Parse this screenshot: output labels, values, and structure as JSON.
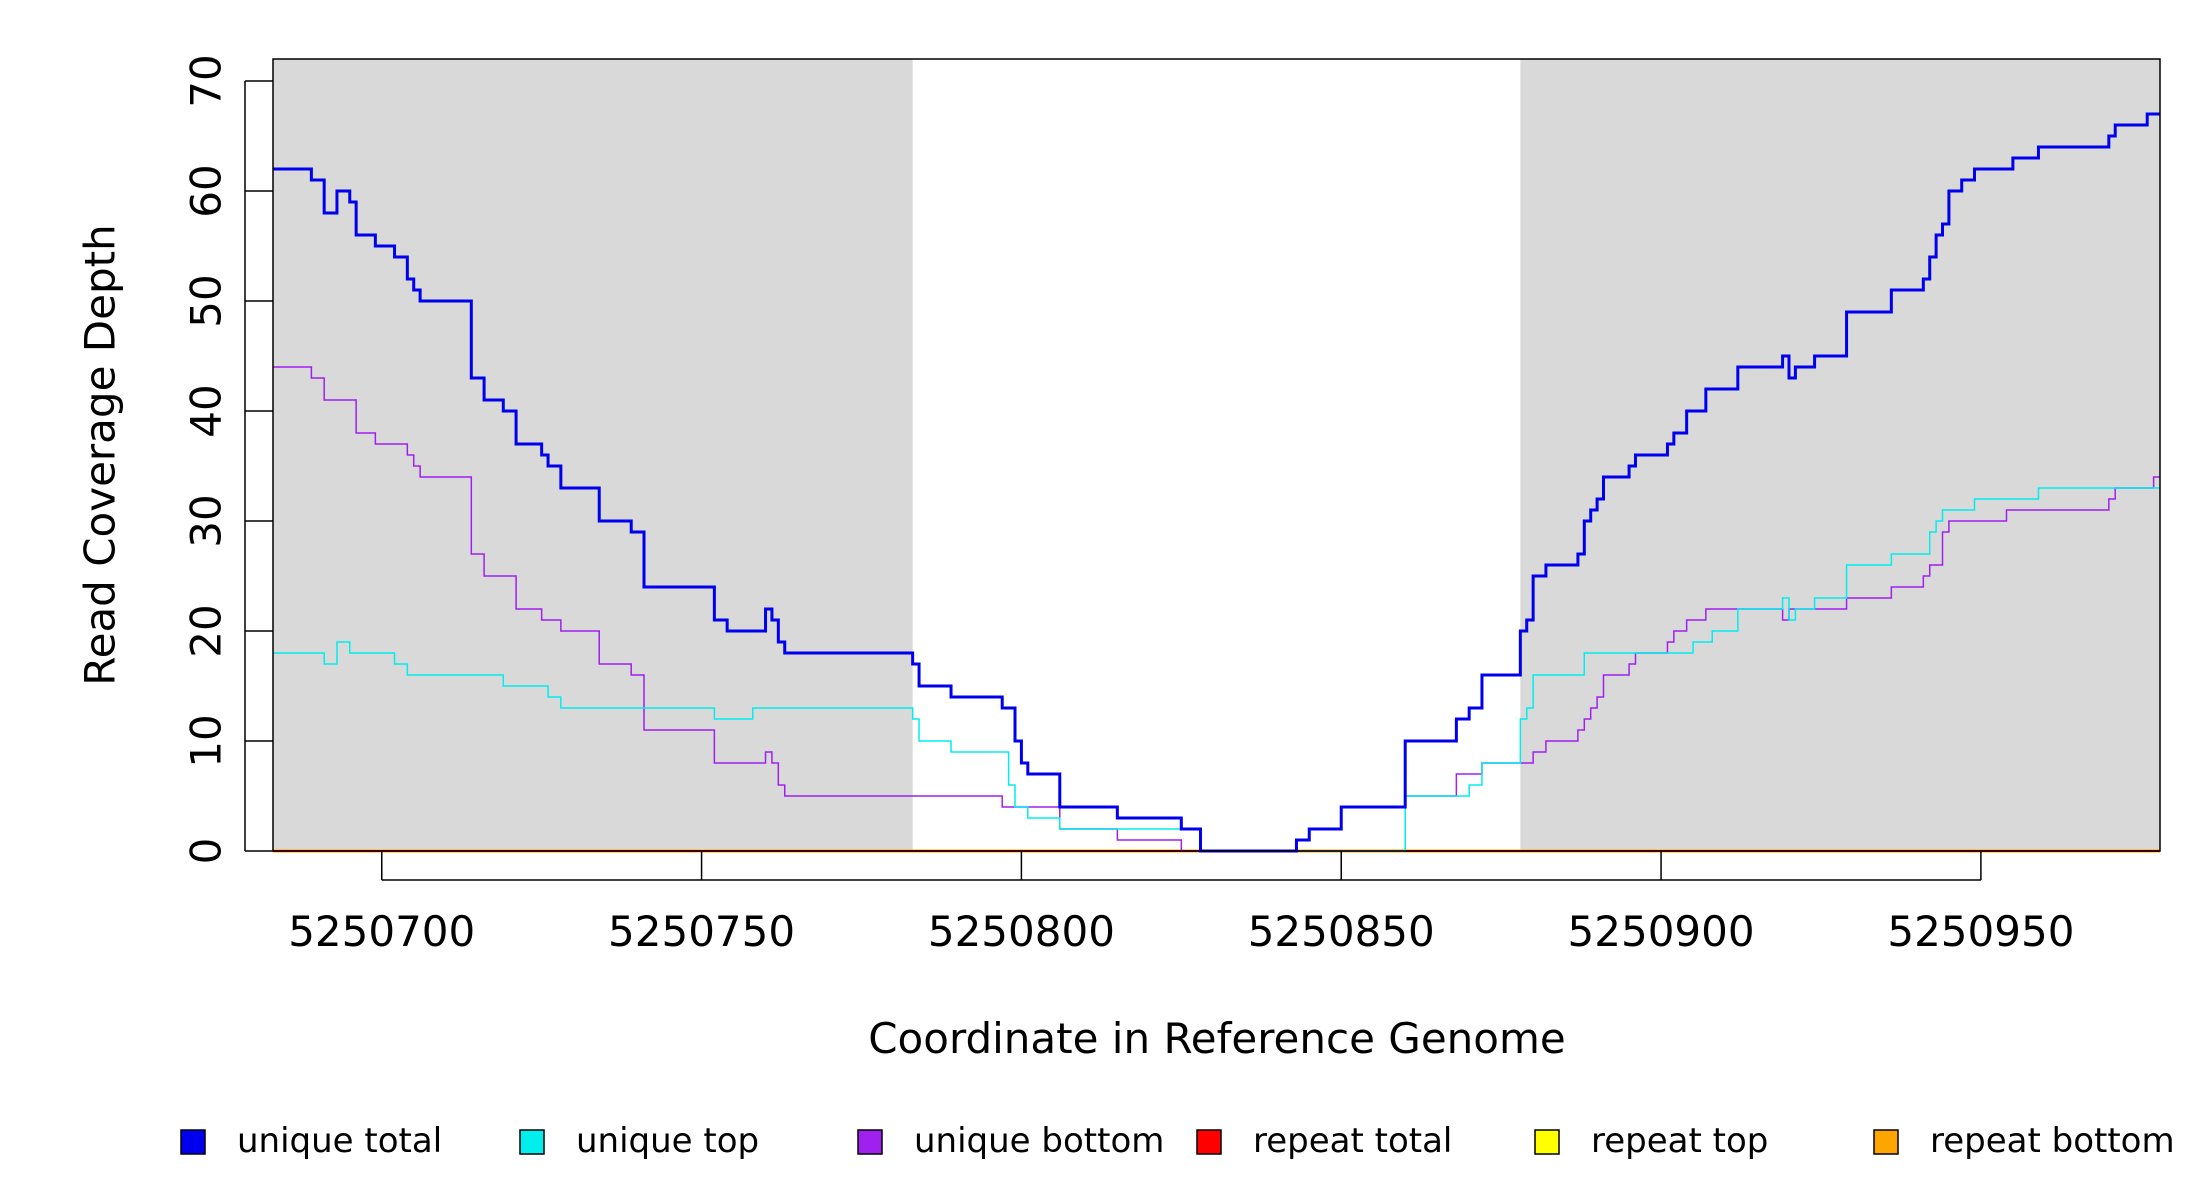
{
  "chart_data": {
    "type": "line",
    "title": "",
    "xlabel": "Coordinate in Reference Genome",
    "ylabel": "Read Coverage Depth",
    "xlim": [
      5250683,
      5250978
    ],
    "ylim": [
      0,
      72
    ],
    "x_ticks": [
      5250700,
      5250750,
      5250800,
      5250850,
      5250900,
      5250950
    ],
    "x_tick_labels": [
      "5250700",
      "5250750",
      "5250800",
      "5250850",
      "5250900",
      "5250950"
    ],
    "y_ticks": [
      0,
      10,
      20,
      30,
      40,
      50,
      60,
      70
    ],
    "y_tick_labels": [
      "0",
      "10",
      "20",
      "30",
      "40",
      "50",
      "60",
      "70"
    ],
    "grid": false,
    "legend_position": "bottom",
    "shaded_regions": [
      {
        "x_start": 5250683,
        "x_end": 5250783,
        "color": "#d9d9d9"
      },
      {
        "x_start": 5250878,
        "x_end": 5250978,
        "color": "#d9d9d9"
      }
    ],
    "series": [
      {
        "name": "unique total",
        "color": "#0000ee",
        "line": "step",
        "width": 3,
        "points": [
          [
            5250683,
            62
          ],
          [
            5250689,
            61
          ],
          [
            5250691,
            58
          ],
          [
            5250693,
            60
          ],
          [
            5250695,
            59
          ],
          [
            5250696,
            56
          ],
          [
            5250699,
            55
          ],
          [
            5250702,
            54
          ],
          [
            5250704,
            52
          ],
          [
            5250705,
            51
          ],
          [
            5250706,
            50
          ],
          [
            5250714,
            43
          ],
          [
            5250716,
            41
          ],
          [
            5250719,
            40
          ],
          [
            5250721,
            37
          ],
          [
            5250725,
            36
          ],
          [
            5250726,
            35
          ],
          [
            5250728,
            33
          ],
          [
            5250734,
            30
          ],
          [
            5250739,
            29
          ],
          [
            5250741,
            24
          ],
          [
            5250752,
            21
          ],
          [
            5250754,
            20
          ],
          [
            5250760,
            22
          ],
          [
            5250761,
            21
          ],
          [
            5250762,
            19
          ],
          [
            5250763,
            18
          ],
          [
            5250783,
            17
          ],
          [
            5250784,
            15
          ],
          [
            5250789,
            14
          ],
          [
            5250797,
            13
          ],
          [
            5250799,
            10
          ],
          [
            5250800,
            8
          ],
          [
            5250801,
            7
          ],
          [
            5250806,
            4
          ],
          [
            5250815,
            3
          ],
          [
            5250825,
            2
          ],
          [
            5250828,
            0
          ],
          [
            5250843,
            1
          ],
          [
            5250845,
            2
          ],
          [
            5250850,
            4
          ],
          [
            5250860,
            10
          ],
          [
            5250868,
            12
          ],
          [
            5250870,
            13
          ],
          [
            5250872,
            16
          ],
          [
            5250878,
            20
          ],
          [
            5250879,
            21
          ],
          [
            5250880,
            25
          ],
          [
            5250882,
            26
          ],
          [
            5250887,
            27
          ],
          [
            5250888,
            30
          ],
          [
            5250889,
            31
          ],
          [
            5250890,
            32
          ],
          [
            5250891,
            34
          ],
          [
            5250895,
            35
          ],
          [
            5250896,
            36
          ],
          [
            5250901,
            37
          ],
          [
            5250902,
            38
          ],
          [
            5250904,
            40
          ],
          [
            5250907,
            42
          ],
          [
            5250912,
            44
          ],
          [
            5250919,
            45
          ],
          [
            5250920,
            43
          ],
          [
            5250921,
            44
          ],
          [
            5250924,
            45
          ],
          [
            5250929,
            49
          ],
          [
            5250936,
            51
          ],
          [
            5250941,
            52
          ],
          [
            5250942,
            54
          ],
          [
            5250943,
            56
          ],
          [
            5250944,
            57
          ],
          [
            5250945,
            60
          ],
          [
            5250947,
            61
          ],
          [
            5250949,
            62
          ],
          [
            5250955,
            63
          ],
          [
            5250959,
            64
          ],
          [
            5250970,
            65
          ],
          [
            5250971,
            66
          ],
          [
            5250976,
            67
          ],
          [
            5250978,
            67
          ]
        ]
      },
      {
        "name": "unique top",
        "color": "#00eeee",
        "line": "step",
        "width": 1.5,
        "points": [
          [
            5250683,
            18
          ],
          [
            5250691,
            17
          ],
          [
            5250693,
            19
          ],
          [
            5250695,
            18
          ],
          [
            5250702,
            17
          ],
          [
            5250704,
            16
          ],
          [
            5250719,
            15
          ],
          [
            5250726,
            14
          ],
          [
            5250728,
            13
          ],
          [
            5250752,
            12
          ],
          [
            5250758,
            13
          ],
          [
            5250783,
            12
          ],
          [
            5250784,
            10
          ],
          [
            5250789,
            9
          ],
          [
            5250798,
            6
          ],
          [
            5250799,
            4
          ],
          [
            5250801,
            3
          ],
          [
            5250806,
            2
          ],
          [
            5250828,
            0
          ],
          [
            5250860,
            5
          ],
          [
            5250870,
            6
          ],
          [
            5250872,
            8
          ],
          [
            5250878,
            12
          ],
          [
            5250879,
            13
          ],
          [
            5250880,
            16
          ],
          [
            5250888,
            18
          ],
          [
            5250905,
            19
          ],
          [
            5250908,
            20
          ],
          [
            5250912,
            22
          ],
          [
            5250919,
            23
          ],
          [
            5250920,
            21
          ],
          [
            5250921,
            22
          ],
          [
            5250924,
            23
          ],
          [
            5250929,
            26
          ],
          [
            5250936,
            27
          ],
          [
            5250942,
            29
          ],
          [
            5250943,
            30
          ],
          [
            5250944,
            31
          ],
          [
            5250949,
            32
          ],
          [
            5250959,
            33
          ],
          [
            5250978,
            33
          ]
        ]
      },
      {
        "name": "unique bottom",
        "color": "#a020f0",
        "line": "step",
        "width": 1.5,
        "points": [
          [
            5250683,
            44
          ],
          [
            5250689,
            43
          ],
          [
            5250691,
            41
          ],
          [
            5250696,
            38
          ],
          [
            5250699,
            37
          ],
          [
            5250704,
            36
          ],
          [
            5250705,
            35
          ],
          [
            5250706,
            34
          ],
          [
            5250714,
            27
          ],
          [
            5250716,
            25
          ],
          [
            5250721,
            22
          ],
          [
            5250725,
            21
          ],
          [
            5250728,
            20
          ],
          [
            5250734,
            17
          ],
          [
            5250739,
            16
          ],
          [
            5250741,
            11
          ],
          [
            5250752,
            8
          ],
          [
            5250760,
            9
          ],
          [
            5250761,
            8
          ],
          [
            5250762,
            6
          ],
          [
            5250763,
            5
          ],
          [
            5250797,
            4
          ],
          [
            5250806,
            2
          ],
          [
            5250815,
            1
          ],
          [
            5250825,
            0
          ],
          [
            5250843,
            1
          ],
          [
            5250845,
            2
          ],
          [
            5250850,
            4
          ],
          [
            5250860,
            5
          ],
          [
            5250868,
            7
          ],
          [
            5250872,
            8
          ],
          [
            5250880,
            9
          ],
          [
            5250882,
            10
          ],
          [
            5250887,
            11
          ],
          [
            5250888,
            12
          ],
          [
            5250889,
            13
          ],
          [
            5250890,
            14
          ],
          [
            5250891,
            16
          ],
          [
            5250895,
            17
          ],
          [
            5250896,
            18
          ],
          [
            5250901,
            19
          ],
          [
            5250902,
            20
          ],
          [
            5250904,
            21
          ],
          [
            5250907,
            22
          ],
          [
            5250919,
            21
          ],
          [
            5250920,
            22
          ],
          [
            5250929,
            23
          ],
          [
            5250936,
            24
          ],
          [
            5250941,
            25
          ],
          [
            5250942,
            26
          ],
          [
            5250944,
            29
          ],
          [
            5250945,
            30
          ],
          [
            5250954,
            31
          ],
          [
            5250970,
            32
          ],
          [
            5250971,
            33
          ],
          [
            5250977,
            34
          ],
          [
            5250978,
            34
          ]
        ]
      },
      {
        "name": "repeat total",
        "color": "#ff0000",
        "line": "step",
        "width": 2,
        "points": [
          [
            5250683,
            0
          ],
          [
            5250978,
            0
          ]
        ]
      },
      {
        "name": "repeat top",
        "color": "#ffff00",
        "line": "step",
        "width": 2,
        "points": [
          [
            5250683,
            0
          ],
          [
            5250978,
            0
          ]
        ]
      },
      {
        "name": "repeat bottom",
        "color": "#ffa500",
        "line": "step",
        "width": 3,
        "points": [
          [
            5250683,
            0
          ],
          [
            5250978,
            0
          ]
        ]
      }
    ]
  }
}
